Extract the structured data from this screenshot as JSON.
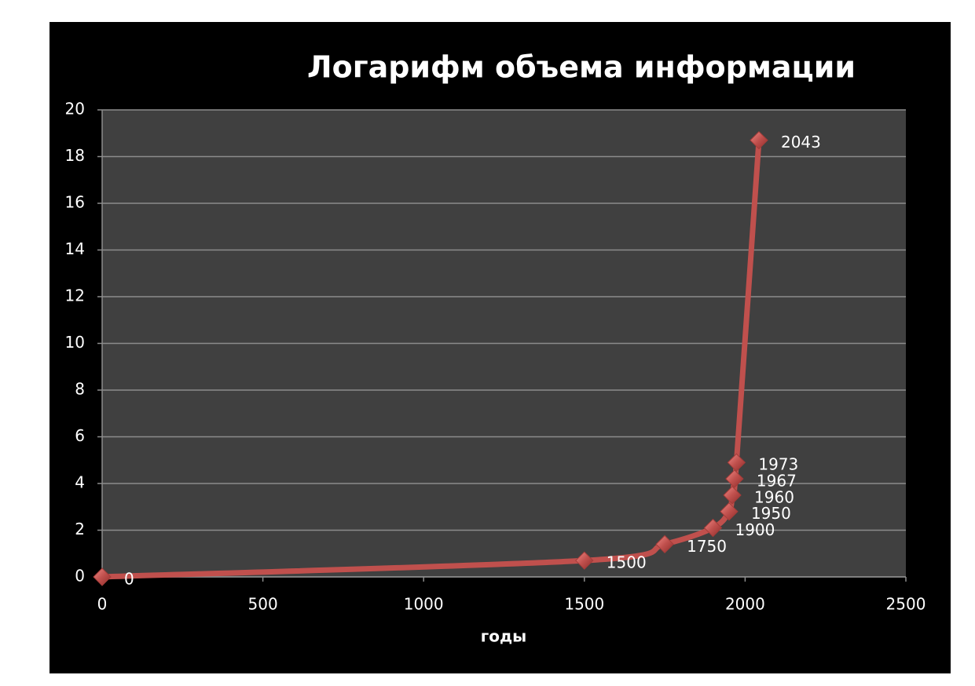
{
  "chart_data": {
    "type": "scatter",
    "title": "Логарифм объема информации",
    "xlabel": "годы",
    "x": [
      0,
      1500,
      1750,
      1900,
      1950,
      1960,
      1967,
      1973,
      2043
    ],
    "values": [
      0,
      0.7,
      1.4,
      2.1,
      2.8,
      3.5,
      4.2,
      4.9,
      18.7
    ],
    "color": "#c0504d",
    "xlim": [
      0,
      2500
    ],
    "xticks": [
      0,
      500,
      1000,
      1500,
      2000,
      2500
    ],
    "ylim": [
      0,
      20
    ],
    "yticks": [
      0,
      2,
      4,
      6,
      8,
      10,
      12,
      14,
      16,
      18,
      20
    ],
    "grid": true
  }
}
